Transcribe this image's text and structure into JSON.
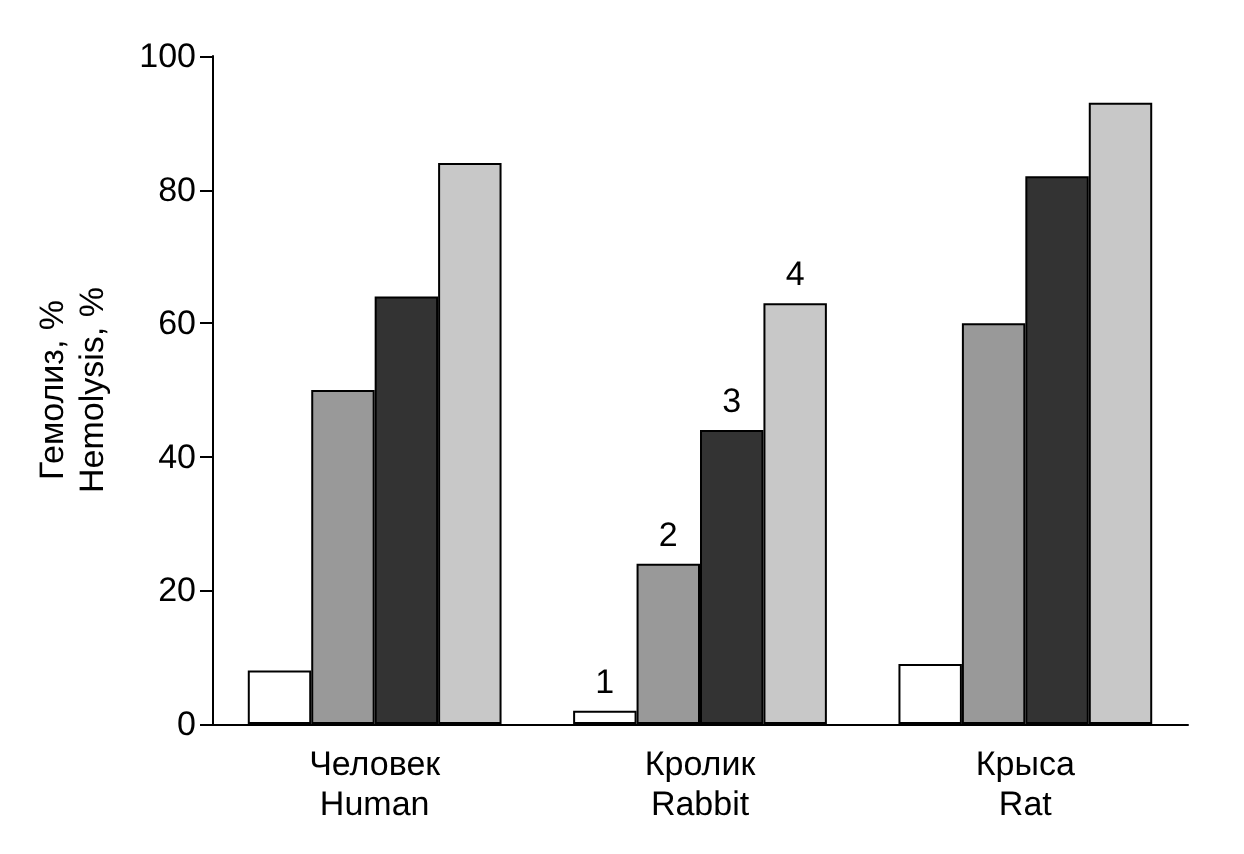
{
  "chart_data": {
    "type": "bar",
    "ylabel": "Гемолиз, %\nHemolysis, %",
    "categories": [
      "Человек\nHuman",
      "Кролик\nRabbit",
      "Крыса\nRat"
    ],
    "series": [
      {
        "name": "1",
        "color": "#ffffff",
        "values": [
          8,
          2,
          9
        ]
      },
      {
        "name": "2",
        "color": "#999999",
        "values": [
          50,
          24,
          60
        ]
      },
      {
        "name": "3",
        "color": "#333333",
        "values": [
          64,
          44,
          82
        ]
      },
      {
        "name": "4",
        "color": "#c8c8c8",
        "values": [
          84,
          63,
          93
        ]
      }
    ],
    "ylim": [
      0,
      100
    ],
    "yticks": [
      0,
      20,
      40,
      60,
      80,
      100
    ],
    "grid": false
  }
}
